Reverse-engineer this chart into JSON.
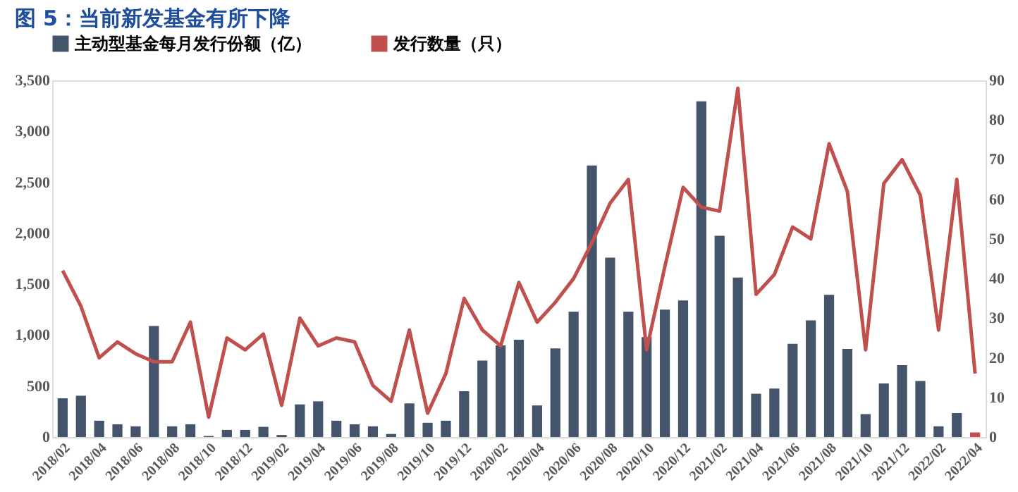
{
  "chart_data": {
    "type": "bar",
    "title": "图 5：当前新发基金有所下降",
    "categories": [
      "2018/02",
      null,
      "2018/04",
      null,
      "2018/06",
      null,
      "2018/08",
      null,
      "2018/10",
      null,
      "2018/12",
      null,
      "2019/02",
      null,
      "2019/04",
      null,
      "2019/06",
      null,
      "2019/08",
      null,
      "2019/10",
      null,
      "2019/12",
      null,
      "2020/02",
      null,
      "2020/04",
      null,
      "2020/06",
      null,
      "2020/08",
      null,
      "2020/10",
      null,
      "2020/12",
      null,
      "2021/02",
      null,
      "2021/04",
      null,
      "2021/06",
      null,
      "2021/08",
      null,
      "2021/10",
      null,
      "2021/12",
      null,
      "2022/02",
      null,
      "2022/04"
    ],
    "series": [
      {
        "name": "主动型基金每月发行份额（亿）",
        "color": "#44546a",
        "colors": [
          "#44546a",
          "#44546a",
          "#44546a",
          "#44546a",
          "#44546a",
          "#44546a",
          "#44546a",
          "#44546a",
          "#44546a",
          "#44546a",
          "#44546a",
          "#44546a",
          "#44546a",
          "#44546a",
          "#44546a",
          "#44546a",
          "#44546a",
          "#44546a",
          "#44546a",
          "#44546a",
          "#44546a",
          "#44546a",
          "#44546a",
          "#44546a",
          "#44546a",
          "#44546a",
          "#44546a",
          "#44546a",
          "#44546a",
          "#44546a",
          "#44546a",
          "#44546a",
          "#44546a",
          "#44546a",
          "#44546a",
          "#44546a",
          "#44546a",
          "#44546a",
          "#44546a",
          "#44546a",
          "#44546a",
          "#44546a",
          "#44546a",
          "#44546a",
          "#44546a",
          "#44546a",
          "#44546a",
          "#44546a",
          "#44546a",
          "#44546a",
          "#c0504d"
        ],
        "values": [
          380,
          405,
          160,
          125,
          105,
          1090,
          105,
          125,
          10,
          70,
          70,
          100,
          20,
          320,
          350,
          160,
          125,
          105,
          30,
          330,
          140,
          160,
          450,
          750,
          900,
          955,
          310,
          870,
          1230,
          2665,
          1760,
          1230,
          980,
          1250,
          1340,
          3295,
          1975,
          1565,
          425,
          475,
          915,
          1145,
          1395,
          865,
          225,
          525,
          705,
          550,
          105,
          235,
          45
        ]
      },
      {
        "name": "发行数量（只）",
        "type": "line",
        "axis": "y2",
        "color": "#c0504d",
        "values": [
          42,
          33,
          20,
          24,
          21,
          19,
          19,
          29,
          5,
          25,
          22,
          26,
          8,
          30,
          23,
          25,
          24,
          13,
          9,
          27,
          6,
          16,
          35,
          27,
          23,
          39,
          29,
          34,
          40,
          49,
          59,
          65,
          22,
          43,
          63,
          58,
          57,
          88,
          36,
          41,
          53,
          50,
          74,
          62,
          22,
          64,
          70,
          61,
          27,
          65,
          16
        ]
      }
    ],
    "ylim": [
      0,
      3500
    ],
    "yticks": [
      0,
      {
        "value": 500,
        "label": "500"
      },
      {
        "value": 1000,
        "label": "1,000"
      },
      {
        "value": 1500,
        "label": "1,500"
      },
      {
        "value": 2000,
        "label": "2,000"
      },
      {
        "value": 2500,
        "label": "2,500"
      },
      {
        "value": 3000,
        "label": "3,000"
      },
      {
        "value": 3500,
        "label": "3,500"
      }
    ],
    "y2lim": [
      0,
      90
    ],
    "y2ticks": [
      0,
      10,
      20,
      30,
      40,
      50,
      60,
      70,
      80,
      90
    ],
    "legend": "top",
    "grid": false
  }
}
